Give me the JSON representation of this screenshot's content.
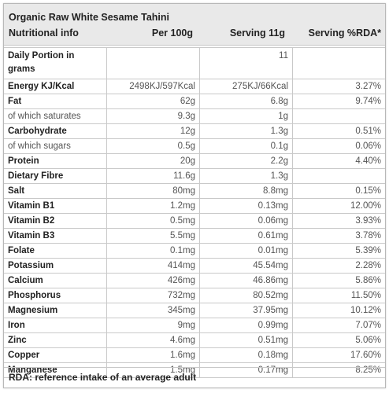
{
  "title": "Organic Raw White Sesame Tahini",
  "columns": {
    "name": "Nutritional info",
    "per100g": "Per 100g",
    "serving": "Serving 11g",
    "rda": "Serving %RDA*"
  },
  "portion": {
    "label": "Daily Portion in grams",
    "serving": "11"
  },
  "rows": [
    {
      "name": "Energy KJ/Kcal",
      "per100g": "2498KJ/597Kcal",
      "serving": "275KJ/66Kcal",
      "rda": "3.27%",
      "sub": false
    },
    {
      "name": "Fat",
      "per100g": "62g",
      "serving": "6.8g",
      "rda": "9.74%",
      "sub": false
    },
    {
      "name": "of which saturates",
      "per100g": "9.3g",
      "serving": "1g",
      "rda": "",
      "sub": true
    },
    {
      "name": "Carbohydrate",
      "per100g": "12g",
      "serving": "1.3g",
      "rda": "0.51%",
      "sub": false
    },
    {
      "name": "of which sugars",
      "per100g": "0.5g",
      "serving": "0.1g",
      "rda": "0.06%",
      "sub": true
    },
    {
      "name": "Protein",
      "per100g": "20g",
      "serving": "2.2g",
      "rda": "4.40%",
      "sub": false
    },
    {
      "name": "Dietary Fibre",
      "per100g": "11.6g",
      "serving": "1.3g",
      "rda": "",
      "sub": false
    },
    {
      "name": "Salt",
      "per100g": "80mg",
      "serving": "8.8mg",
      "rda": "0.15%",
      "sub": false
    },
    {
      "name": "Vitamin B1",
      "per100g": "1.2mg",
      "serving": "0.13mg",
      "rda": "12.00%",
      "sub": false
    },
    {
      "name": "Vitamin B2",
      "per100g": "0.5mg",
      "serving": "0.06mg",
      "rda": "3.93%",
      "sub": false
    },
    {
      "name": "Vitamin B3",
      "per100g": "5.5mg",
      "serving": "0.61mg",
      "rda": "3.78%",
      "sub": false
    },
    {
      "name": "Folate",
      "per100g": "0.1mg",
      "serving": "0.01mg",
      "rda": "5.39%",
      "sub": false
    },
    {
      "name": "Potassium",
      "per100g": "414mg",
      "serving": "45.54mg",
      "rda": "2.28%",
      "sub": false
    },
    {
      "name": "Calcium",
      "per100g": "426mg",
      "serving": "46.86mg",
      "rda": "5.86%",
      "sub": false
    },
    {
      "name": "Phosphorus",
      "per100g": "732mg",
      "serving": "80.52mg",
      "rda": "11.50%",
      "sub": false
    },
    {
      "name": "Magnesium",
      "per100g": "345mg",
      "serving": "37.95mg",
      "rda": "10.12%",
      "sub": false
    },
    {
      "name": "Iron",
      "per100g": "9mg",
      "serving": "0.99mg",
      "rda": "7.07%",
      "sub": false
    },
    {
      "name": "Zinc",
      "per100g": "4.6mg",
      "serving": "0.51mg",
      "rda": "5.06%",
      "sub": false
    },
    {
      "name": "Copper",
      "per100g": "1.6mg",
      "serving": "0.18mg",
      "rda": "17.60%",
      "sub": false
    },
    {
      "name": "Manganese",
      "per100g": "1.5mg",
      "serving": "0.17mg",
      "rda": "8.25%",
      "sub": false
    }
  ],
  "footnote": "RDA: reference intake of an average adult"
}
